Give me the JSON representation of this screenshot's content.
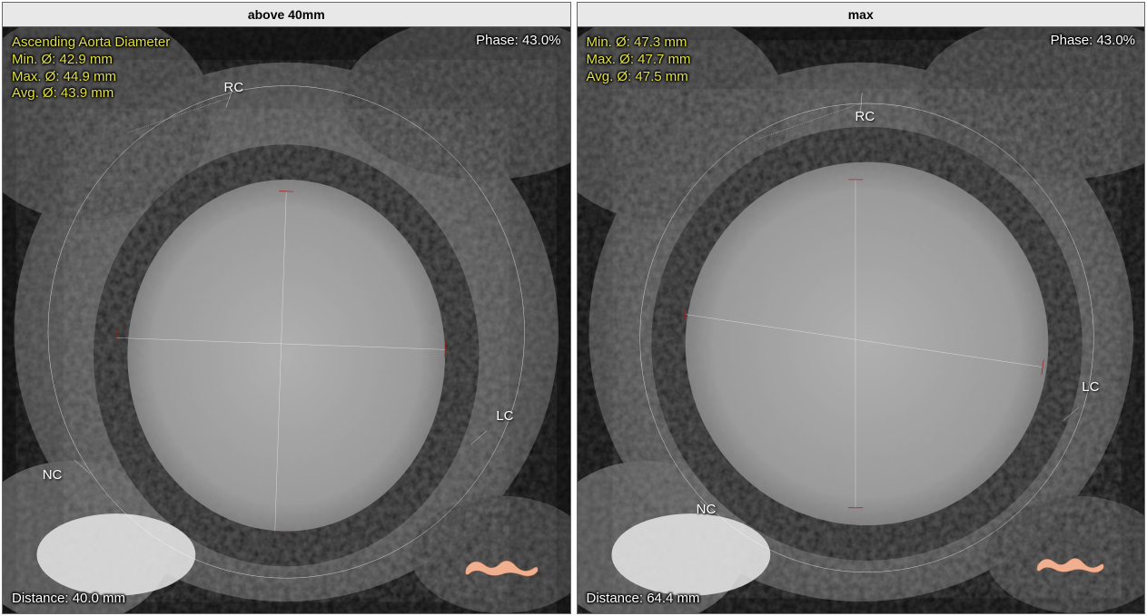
{
  "panels": [
    {
      "header": "above 40mm",
      "phase_label": "Phase: 43.0%",
      "distance_label": "Distance: 40.0 mm",
      "measurements_title": "Ascending Aorta Diameter",
      "measurements": [
        "Min. Ø: 42.9 mm",
        "Max. Ø: 44.9 mm",
        "Avg. Ø: 43.9 mm"
      ],
      "measurements_color": "#e0e040",
      "cusp_labels": {
        "RC": "RC",
        "NC": "NC",
        "LC": "LC"
      },
      "circle": {
        "cx_pct": 50,
        "cy_pct": 52,
        "r_pct": 42
      },
      "diameters": [
        {
          "x1_pct": 50,
          "y1_pct": 28,
          "x2_pct": 48,
          "y2_pct": 86
        },
        {
          "x1_pct": 20,
          "y1_pct": 53,
          "x2_pct": 78,
          "y2_pct": 55
        }
      ],
      "ticks": [
        {
          "x_pct": 40,
          "y_pct": 12,
          "angle": -70
        },
        {
          "x_pct": 14,
          "y_pct": 75,
          "angle": 40
        },
        {
          "x_pct": 84,
          "y_pct": 70,
          "angle": -40
        }
      ],
      "cusp_positions": {
        "RC": {
          "left_pct": 39,
          "top_pct": 9
        },
        "NC": {
          "left_pct": 7,
          "top_pct": 75
        },
        "LC": {
          "left_pct": 87,
          "top_pct": 65
        }
      },
      "lumen": {
        "cx_pct": 50,
        "cy_pct": 56,
        "rx_pct": 28,
        "ry_pct": 30
      },
      "model3d": {
        "right_pct": 5,
        "bottom_pct": 5,
        "w_pct": 14,
        "h_pct": 6
      }
    },
    {
      "header": "max",
      "phase_label": "Phase: 43.0%",
      "distance_label": "Distance: 64.4 mm",
      "measurements_title": "",
      "measurements": [
        "Min. Ø: 47.3 mm",
        "Max. Ø: 47.7 mm",
        "Avg. Ø: 47.5 mm"
      ],
      "measurements_color": "#e0e040",
      "cusp_labels": {
        "RC": "RC",
        "NC": "NC",
        "LC": "LC"
      },
      "circle": {
        "cx_pct": 51,
        "cy_pct": 53,
        "r_pct": 40
      },
      "diameters": [
        {
          "x1_pct": 49,
          "y1_pct": 26,
          "x2_pct": 49,
          "y2_pct": 82
        },
        {
          "x1_pct": 19,
          "y1_pct": 49,
          "x2_pct": 82,
          "y2_pct": 58
        }
      ],
      "ticks": [
        {
          "x_pct": 50,
          "y_pct": 13,
          "angle": -85
        },
        {
          "x_pct": 23,
          "y_pct": 82,
          "angle": 40
        },
        {
          "x_pct": 87,
          "y_pct": 66,
          "angle": -40
        }
      ],
      "cusp_positions": {
        "RC": {
          "left_pct": 49,
          "top_pct": 14
        },
        "NC": {
          "left_pct": 21,
          "top_pct": 81
        },
        "LC": {
          "left_pct": 89,
          "top_pct": 60
        }
      },
      "lumen": {
        "cx_pct": 51,
        "cy_pct": 54,
        "rx_pct": 32,
        "ry_pct": 31
      },
      "model3d": {
        "right_pct": 5,
        "bottom_pct": 6,
        "w_pct": 16,
        "h_pct": 5
      }
    }
  ],
  "colors": {
    "circle_stroke": "#ffffff",
    "diameter_stroke": "#ffffff",
    "endpoint_fill": "#b01818",
    "dashed_stroke": "#ffffff",
    "model3d_fill": "#f0b090"
  }
}
